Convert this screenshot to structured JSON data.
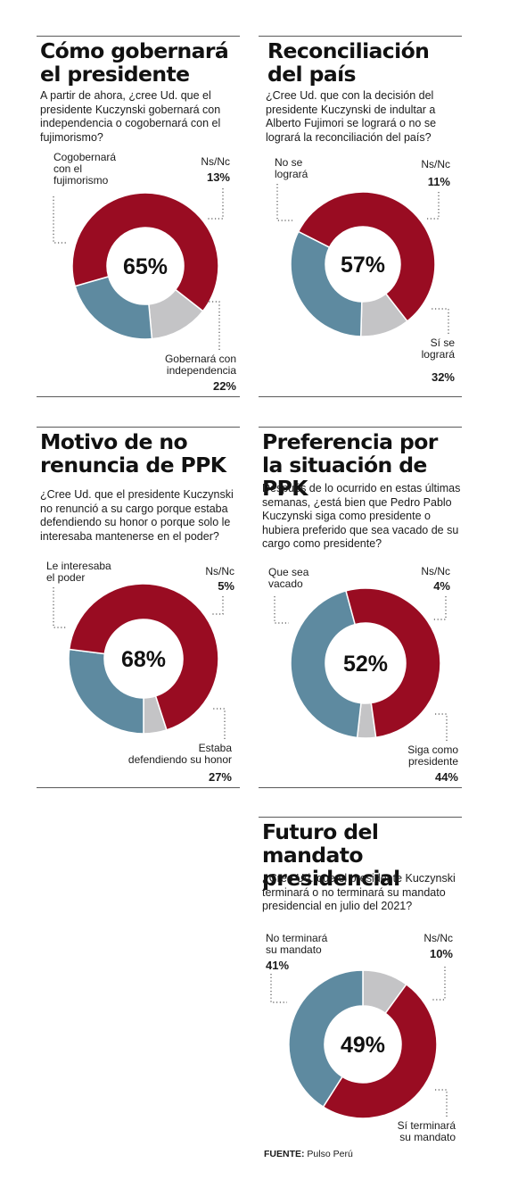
{
  "colors": {
    "red": "#990c22",
    "blue": "#5e8aa0",
    "gray": "#c4c4c6",
    "dots": "#555555"
  },
  "chart_data": [
    {
      "type": "pie",
      "title": "Cómo gobernará el presidente",
      "question": "A partir de ahora, ¿cree Ud. que el presidente Kuczynski gobernará con independencia o cogobernará con el fujimorismo?",
      "center_label": "65%",
      "slices": [
        {
          "label": "Ns/Nc",
          "value": 13,
          "display": "13%",
          "color": "gray"
        },
        {
          "label": "Gobernará con independencia",
          "value": 22,
          "display": "22%",
          "color": "blue"
        },
        {
          "label": "Cogobernará con el fujimorismo",
          "value": 65,
          "display": "",
          "color": "red"
        }
      ]
    },
    {
      "type": "pie",
      "title": "Reconciliación del país",
      "question": "¿Cree Ud. que con la decisión del presidente Kuczynski de indultar a Alberto Fujimori se logrará o no se logrará la reconciliación del país?",
      "center_label": "57%",
      "slices": [
        {
          "label": "Ns/Nc",
          "value": 11,
          "display": "11%",
          "color": "gray"
        },
        {
          "label": "Sí se logrará",
          "value": 32,
          "display": "32%",
          "color": "blue"
        },
        {
          "label": "No se logrará",
          "value": 57,
          "display": "",
          "color": "red"
        }
      ]
    },
    {
      "type": "pie",
      "title": "Motivo de no renuncia de PPK",
      "question": "¿Cree Ud. que el presidente Kuczynski no renunció a su cargo porque estaba defendiendo su honor o porque solo le interesaba mantenerse en el poder?",
      "center_label": "68%",
      "slices": [
        {
          "label": "Ns/Nc",
          "value": 5,
          "display": "5%",
          "color": "gray"
        },
        {
          "label": "Estaba defendiendo su honor",
          "value": 27,
          "display": "27%",
          "color": "blue"
        },
        {
          "label": "Le interesaba el poder",
          "value": 68,
          "display": "",
          "color": "red"
        }
      ]
    },
    {
      "type": "pie",
      "title": "Preferencia por la situación de PPK",
      "question": "Después de lo ocurrido en estas últimas semanas, ¿está bien que Pedro Pablo Kuczynski siga como presidente o hubiera preferido que sea vacado de su cargo como presidente?",
      "center_label": "52%",
      "slices": [
        {
          "label": "Ns/Nc",
          "value": 4,
          "display": "4%",
          "color": "gray"
        },
        {
          "label": "Siga como presidente",
          "value": 44,
          "display": "44%",
          "color": "blue"
        },
        {
          "label": "Que sea vacado",
          "value": 52,
          "display": "",
          "color": "red"
        }
      ]
    },
    {
      "type": "pie",
      "title": "Futuro del mandato presidencial",
      "question": "¿Cree Ud. que el presidente Kuczynski terminará o no terminará su mandato presidencial en julio del 2021?",
      "center_label": "49%",
      "slices": [
        {
          "label": "Ns/Nc",
          "value": 10,
          "display": "10%",
          "color": "gray"
        },
        {
          "label": "Sí terminará su mandato",
          "value": 49,
          "display": "",
          "color": "red"
        },
        {
          "label": "No terminará su mandato",
          "value": 41,
          "display": "41%",
          "color": "blue"
        }
      ]
    }
  ],
  "labels": {
    "c1": {
      "red": [
        "Cogobernará",
        "con el",
        "fujimorismo"
      ],
      "gray": [
        "Ns/Nc"
      ],
      "blue": [
        "Gobernará con",
        "independencia"
      ]
    },
    "c2": {
      "red": [
        "No se",
        "logrará"
      ],
      "gray": [
        "Ns/Nc"
      ],
      "blue": [
        "Sí se",
        "logrará"
      ]
    },
    "c3": {
      "red": [
        "Le interesaba",
        "el poder"
      ],
      "gray": [
        "Ns/Nc"
      ],
      "blue": [
        "Estaba",
        "defendiendo su honor"
      ]
    },
    "c4": {
      "red": [
        "Que sea",
        "vacado"
      ],
      "gray": [
        "Ns/Nc"
      ],
      "blue": [
        "Siga como",
        "presidente"
      ]
    },
    "c5": {
      "red": [
        "Sí terminará",
        "su mandato"
      ],
      "gray": [
        "Ns/Nc"
      ],
      "blue": [
        "No terminará",
        "su mandato"
      ]
    }
  },
  "source": {
    "label": "FUENTE:",
    "text": " Pulso Perú"
  }
}
